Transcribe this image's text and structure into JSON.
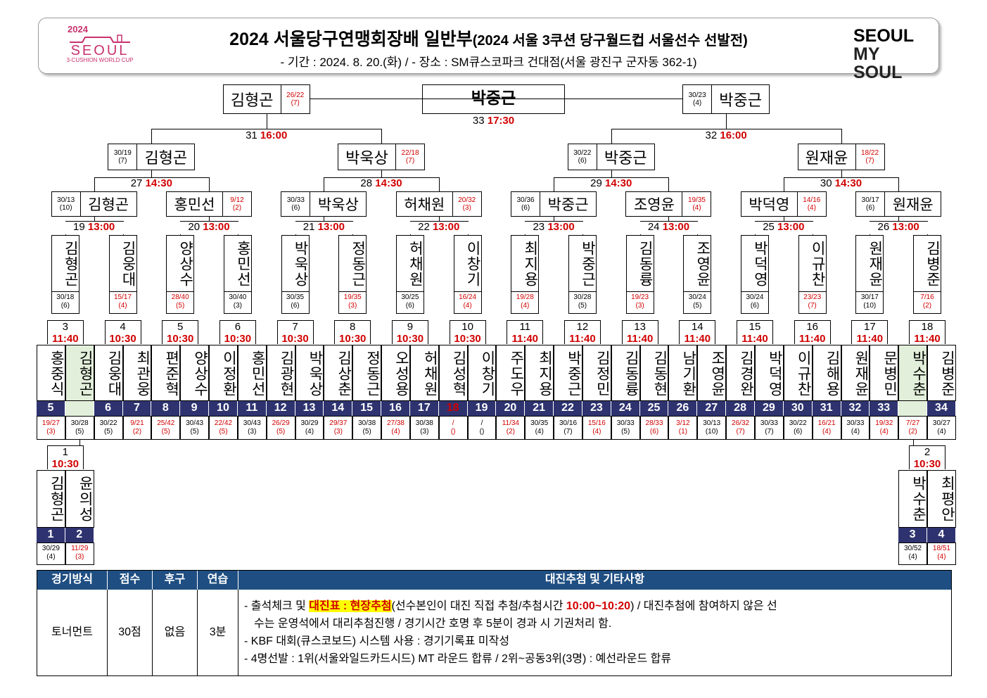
{
  "header": {
    "title_main": "2024 서울당구연맹회장배 일반부",
    "title_sub": "(2024 서울 3쿠션 당구월드컵 서울선수 선발전)",
    "info_prefix": "- 기간 : 2024. 8. 20.(화) / - 장소 : SM큐스코파크 건대점(서울 광진구 군자동 362-1)",
    "logo_left": {
      "year": "2024",
      "city": "SEOUL",
      "sub": "3-CUSHION WORLD CUP"
    },
    "logo_right": {
      "line1": "SEOUL",
      "line2": "MY SOUL"
    },
    "brand_color": "#c8326e"
  },
  "final": {
    "winner": "박중근",
    "match_no": "33",
    "time": "17:30"
  },
  "semis": [
    {
      "name": "김형곤",
      "score": "26/22",
      "rank": "(7)"
    },
    {
      "name": "박중근",
      "score": "30/23",
      "rank": "(4)"
    }
  ],
  "semi_labels": [
    {
      "no": "31",
      "time": "16:00"
    },
    {
      "no": "32",
      "time": "16:00"
    }
  ],
  "quarters": [
    {
      "name": "김형곤",
      "score": "30/19",
      "rank": "(7)",
      "red": false
    },
    {
      "name": "박욱상",
      "score": "22/18",
      "rank": "(7)",
      "red": true
    },
    {
      "name": "박중근",
      "score": "30/22",
      "rank": "(6)",
      "red": false
    },
    {
      "name": "원재윤",
      "score": "18/22",
      "rank": "(7)",
      "red": true
    }
  ],
  "quarter_labels": [
    {
      "no": "27",
      "time": "14:30"
    },
    {
      "no": "28",
      "time": "14:30"
    },
    {
      "no": "29",
      "time": "14:30"
    },
    {
      "no": "30",
      "time": "14:30"
    }
  ],
  "r16": [
    {
      "name": "김형곤",
      "score": "30/13",
      "rank": "(10)",
      "red": false,
      "side": "left"
    },
    {
      "name": "홍민선",
      "score": "9/12",
      "rank": "(2)",
      "red": true,
      "side": "right"
    },
    {
      "name": "박욱상",
      "score": "30/33",
      "rank": "(6)",
      "red": false,
      "side": "left"
    },
    {
      "name": "허채원",
      "score": "20/32",
      "rank": "(3)",
      "red": true,
      "side": "right"
    },
    {
      "name": "박중근",
      "score": "30/36",
      "rank": "(6)",
      "red": false,
      "side": "left"
    },
    {
      "name": "조영윤",
      "score": "19/35",
      "rank": "(4)",
      "red": true,
      "side": "right"
    },
    {
      "name": "박덕영",
      "score": "14/16",
      "rank": "(4)",
      "red": true,
      "side": "left"
    },
    {
      "name": "원재윤",
      "score": "30/17",
      "rank": "(6)",
      "red": false,
      "side": "right"
    }
  ],
  "r16_labels": [
    {
      "no": "19",
      "time": "13:00"
    },
    {
      "no": "20",
      "time": "13:00"
    },
    {
      "no": "21",
      "time": "13:00"
    },
    {
      "no": "22",
      "time": "13:00"
    },
    {
      "no": "23",
      "time": "13:00"
    },
    {
      "no": "24",
      "time": "13:00"
    },
    {
      "no": "25",
      "time": "13:00"
    },
    {
      "no": "26",
      "time": "13:00"
    }
  ],
  "r32": [
    {
      "name": "김형곤",
      "score": "30/18",
      "rank": "(6)",
      "red": false
    },
    {
      "name": "김웅대",
      "score": "15/17",
      "rank": "(4)",
      "red": true
    },
    {
      "name": "양상수",
      "score": "28/40",
      "rank": "(5)",
      "red": true
    },
    {
      "name": "홍민선",
      "score": "30/40",
      "rank": "(3)",
      "red": false
    },
    {
      "name": "박욱상",
      "score": "30/35",
      "rank": "(6)",
      "red": false
    },
    {
      "name": "정동근",
      "score": "19/35",
      "rank": "(3)",
      "red": true
    },
    {
      "name": "허채원",
      "score": "30/25",
      "rank": "(6)",
      "red": false
    },
    {
      "name": "이창기",
      "score": "16/24",
      "rank": "(4)",
      "red": true
    },
    {
      "name": "최지용",
      "score": "19/28",
      "rank": "(4)",
      "red": true
    },
    {
      "name": "박중근",
      "score": "30/28",
      "rank": "(5)",
      "red": false
    },
    {
      "name": "김동륭",
      "score": "19/23",
      "rank": "(3)",
      "red": true
    },
    {
      "name": "조영윤",
      "score": "30/24",
      "rank": "(5)",
      "red": false
    },
    {
      "name": "박덕영",
      "score": "30/24",
      "rank": "(6)",
      "red": false
    },
    {
      "name": "이규찬",
      "score": "23/23",
      "rank": "(7)",
      "red": true
    },
    {
      "name": "원재윤",
      "score": "30/17",
      "rank": "(10)",
      "red": false
    },
    {
      "name": "김병준",
      "score": "7/16",
      "rank": "(2)",
      "red": true
    }
  ],
  "r64_labels": [
    {
      "no": "3",
      "time": "11:40"
    },
    {
      "no": "4",
      "time": "10:30"
    },
    {
      "no": "5",
      "time": "10:30"
    },
    {
      "no": "6",
      "time": "10:30"
    },
    {
      "no": "7",
      "time": "10:30"
    },
    {
      "no": "8",
      "time": "10:30"
    },
    {
      "no": "9",
      "time": "10:30"
    },
    {
      "no": "10",
      "time": "10:30"
    },
    {
      "no": "11",
      "time": "11:40"
    },
    {
      "no": "12",
      "time": "11:40"
    },
    {
      "no": "13",
      "time": "11:40"
    },
    {
      "no": "14",
      "time": "11:40"
    },
    {
      "no": "15",
      "time": "11:40"
    },
    {
      "no": "16",
      "time": "11:40"
    },
    {
      "no": "17",
      "time": "11:40"
    },
    {
      "no": "18",
      "time": "11:40"
    }
  ],
  "players": [
    {
      "name": "홍중식",
      "seed": "5",
      "score": "19/27",
      "rank": "(3)",
      "red": true,
      "hl": false
    },
    {
      "name": "김형곤",
      "seed": "",
      "score": "30/28",
      "rank": "(5)",
      "red": false,
      "hl": true
    },
    {
      "name": "김웅대",
      "seed": "6",
      "score": "30/22",
      "rank": "(5)",
      "red": false,
      "hl": false
    },
    {
      "name": "최관웅",
      "seed": "7",
      "score": "9/21",
      "rank": "(2)",
      "red": true,
      "hl": false
    },
    {
      "name": "편준혁",
      "seed": "8",
      "score": "25/42",
      "rank": "(5)",
      "red": true,
      "hl": false
    },
    {
      "name": "양상수",
      "seed": "9",
      "score": "30/43",
      "rank": "(5)",
      "red": false,
      "hl": false
    },
    {
      "name": "이정환",
      "seed": "10",
      "score": "22/42",
      "rank": "(5)",
      "red": true,
      "hl": false
    },
    {
      "name": "홍민선",
      "seed": "11",
      "score": "30/43",
      "rank": "(3)",
      "red": false,
      "hl": false
    },
    {
      "name": "김광현",
      "seed": "12",
      "score": "26/29",
      "rank": "(5)",
      "red": true,
      "hl": false
    },
    {
      "name": "박욱상",
      "seed": "13",
      "score": "30/29",
      "rank": "(4)",
      "red": false,
      "hl": false
    },
    {
      "name": "김상춘",
      "seed": "14",
      "score": "29/37",
      "rank": "(3)",
      "red": true,
      "hl": false
    },
    {
      "name": "정동근",
      "seed": "15",
      "score": "30/38",
      "rank": "(5)",
      "red": false,
      "hl": false
    },
    {
      "name": "오성용",
      "seed": "16",
      "score": "27/38",
      "rank": "(4)",
      "red": true,
      "hl": false
    },
    {
      "name": "허채원",
      "seed": "17",
      "score": "30/38",
      "rank": "(3)",
      "red": false,
      "hl": false
    },
    {
      "name": "김성혁",
      "seed": "18",
      "score": "/",
      "rank": "()",
      "red": true,
      "hl": false,
      "seedRed": true
    },
    {
      "name": "이창기",
      "seed": "19",
      "score": "/",
      "rank": "()",
      "red": false,
      "hl": false
    },
    {
      "name": "주도우",
      "seed": "20",
      "score": "11/34",
      "rank": "(2)",
      "red": true,
      "hl": false
    },
    {
      "name": "최지용",
      "seed": "21",
      "score": "30/35",
      "rank": "(4)",
      "red": false,
      "hl": false
    },
    {
      "name": "박중근",
      "seed": "22",
      "score": "30/16",
      "rank": "(7)",
      "red": false,
      "hl": false
    },
    {
      "name": "김정민",
      "seed": "23",
      "score": "15/16",
      "rank": "(4)",
      "red": true,
      "hl": false
    },
    {
      "name": "김동륭",
      "seed": "24",
      "score": "30/33",
      "rank": "(5)",
      "red": false,
      "hl": false
    },
    {
      "name": "김동현",
      "seed": "25",
      "score": "28/33",
      "rank": "(6)",
      "red": true,
      "hl": false
    },
    {
      "name": "남기환",
      "seed": "26",
      "score": "3/12",
      "rank": "(1)",
      "red": true,
      "hl": false
    },
    {
      "name": "조영윤",
      "seed": "27",
      "score": "30/13",
      "rank": "(10)",
      "red": false,
      "hl": false
    },
    {
      "name": "김경완",
      "seed": "28",
      "score": "26/32",
      "rank": "(7)",
      "red": true,
      "hl": false
    },
    {
      "name": "박덕영",
      "seed": "29",
      "score": "30/33",
      "rank": "(7)",
      "red": false,
      "hl": false
    },
    {
      "name": "이규찬",
      "seed": "30",
      "score": "30/22",
      "rank": "(6)",
      "red": false,
      "hl": false
    },
    {
      "name": "김해용",
      "seed": "31",
      "score": "16/21",
      "rank": "(4)",
      "red": true,
      "hl": false
    },
    {
      "name": "원재윤",
      "seed": "32",
      "score": "30/33",
      "rank": "(4)",
      "red": false,
      "hl": false
    },
    {
      "name": "문병민",
      "seed": "33",
      "score": "19/32",
      "rank": "(4)",
      "red": true,
      "hl": false
    },
    {
      "name": "박수춘",
      "seed": "",
      "score": "7/27",
      "rank": "(2)",
      "red": true,
      "hl": true
    },
    {
      "name": "김병준",
      "seed": "34",
      "score": "30/27",
      "rank": "(4)",
      "red": false,
      "hl": false
    }
  ],
  "prelims": [
    {
      "no": "1",
      "time": "10:30",
      "players": [
        {
          "name": "김형곤",
          "seed": "1",
          "score": "30/29",
          "rank": "(4)",
          "red": false
        },
        {
          "name": "윤의성",
          "seed": "2",
          "score": "11/29",
          "rank": "(3)",
          "red": true
        }
      ]
    },
    {
      "no": "2",
      "time": "10:30",
      "players": [
        {
          "name": "박수춘",
          "seed": "3",
          "score": "30/52",
          "rank": "(4)",
          "red": false
        },
        {
          "name": "최평안",
          "seed": "4",
          "score": "18/51",
          "rank": "(4)",
          "red": true
        }
      ]
    }
  ],
  "info_table": {
    "headers": [
      "경기방식",
      "점수",
      "후구",
      "연습",
      "대진추첨 및 기타사항"
    ],
    "values": [
      "토너먼트",
      "30점",
      "없음",
      "3분"
    ],
    "notes": {
      "n1_a": "- 출석체크 및 ",
      "n1_hl": "대진표 : 현장추첨",
      "n1_b": "(선수본인이 대진 직접 추첨/추첨시간 ",
      "n1_time": "10:00~10:20",
      "n1_c": ") / 대진추첨에 참여하지 않은 선",
      "n1_d": "수는 운영석에서 대리추첨진행 / 경기시간 호명 후 5분이 경과 시 기권처리 함.",
      "n2": "- KBF 대회(큐스코보드) 시스템 사용 : 경기기록표 미작성",
      "n3": "- 4명선발 : 1위(서울와일드카드시드) MT 라운드 합류 / 2위~공동3위(3명) : 예선라운드 합류"
    }
  },
  "colors": {
    "navy": "#2e3370",
    "header_blue": "#1f4e82",
    "red": "#d10000",
    "highlight": "#ffff00",
    "seed_bg": "#e2efda"
  }
}
